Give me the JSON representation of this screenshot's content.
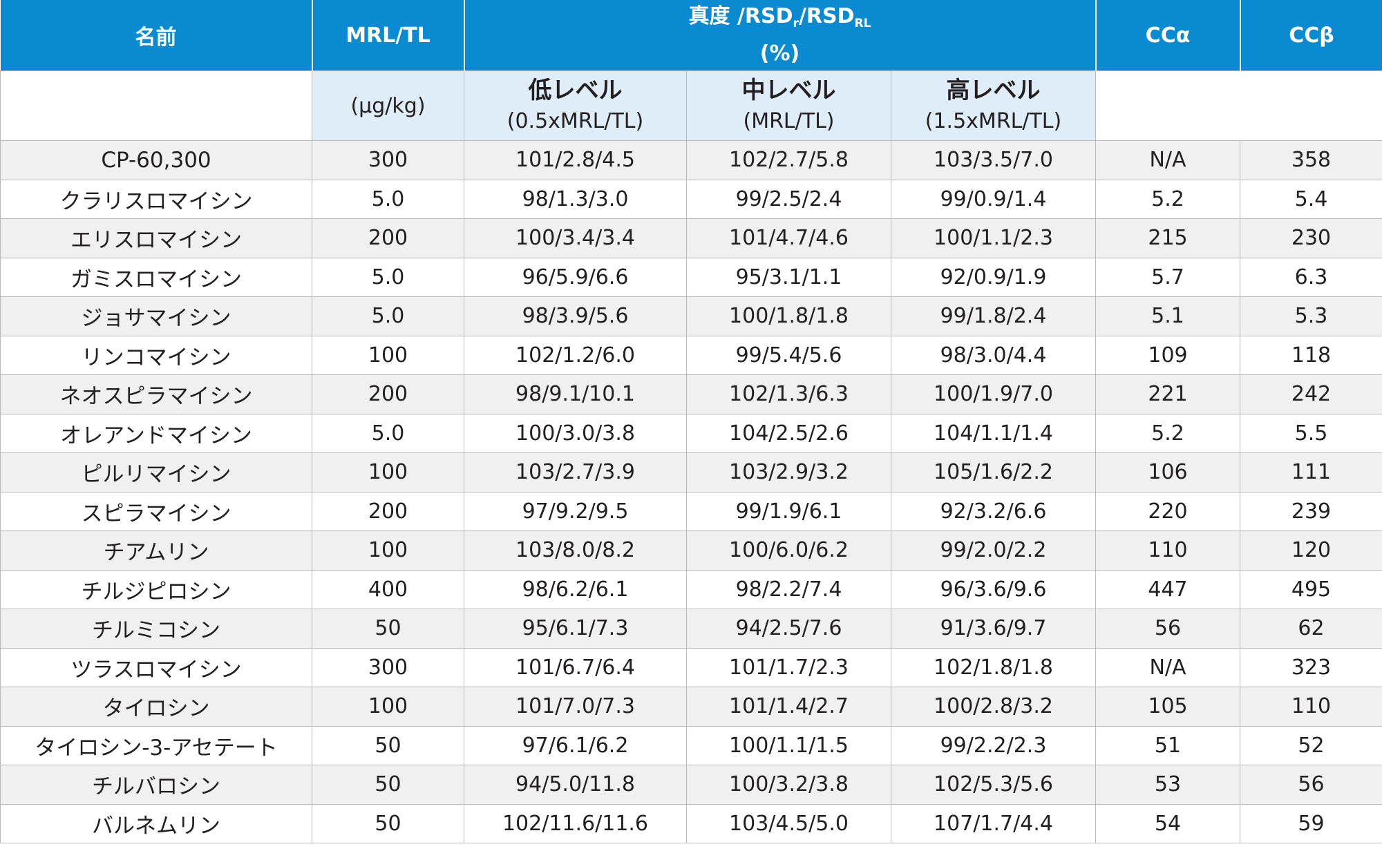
{
  "header": {
    "name": "名前",
    "mrl": "MRL/TL",
    "trueness_prefix": "真度 /RSD",
    "trueness_sub_r": "r",
    "trueness_mid": "/RSD",
    "trueness_sub_rl": "RL",
    "trueness_unit": "(%)",
    "cc_alpha": "CCα",
    "cc_beta": "CCβ"
  },
  "subheader": {
    "unit": "(μg/kg)",
    "low_name": "低レベル",
    "low_def": "(0.5xMRL/TL)",
    "mid_name": "中レベル",
    "mid_def": "(MRL/TL)",
    "high_name": "高レベル",
    "high_def": "(1.5xMRL/TL)"
  },
  "rows": [
    {
      "name": "CP-60,300",
      "mrl": "300",
      "low": "101/2.8/4.5",
      "mid": "102/2.7/5.8",
      "high": "103/3.5/7.0",
      "cca": "N/A",
      "ccb": "358"
    },
    {
      "name": "クラリスロマイシン",
      "mrl": "5.0",
      "low": "98/1.3/3.0",
      "mid": "99/2.5/2.4",
      "high": "99/0.9/1.4",
      "cca": "5.2",
      "ccb": "5.4"
    },
    {
      "name": "エリスロマイシン",
      "mrl": "200",
      "low": "100/3.4/3.4",
      "mid": "101/4.7/4.6",
      "high": "100/1.1/2.3",
      "cca": "215",
      "ccb": "230"
    },
    {
      "name": "ガミスロマイシン",
      "mrl": "5.0",
      "low": "96/5.9/6.6",
      "mid": "95/3.1/1.1",
      "high": "92/0.9/1.9",
      "cca": "5.7",
      "ccb": "6.3"
    },
    {
      "name": "ジョサマイシン",
      "mrl": "5.0",
      "low": "98/3.9/5.6",
      "mid": "100/1.8/1.8",
      "high": "99/1.8/2.4",
      "cca": "5.1",
      "ccb": "5.3"
    },
    {
      "name": "リンコマイシン",
      "mrl": "100",
      "low": "102/1.2/6.0",
      "mid": "99/5.4/5.6",
      "high": "98/3.0/4.4",
      "cca": "109",
      "ccb": "118"
    },
    {
      "name": "ネオスピラマイシン",
      "mrl": "200",
      "low": "98/9.1/10.1",
      "mid": "102/1.3/6.3",
      "high": "100/1.9/7.0",
      "cca": "221",
      "ccb": "242"
    },
    {
      "name": "オレアンドマイシン",
      "mrl": "5.0",
      "low": "100/3.0/3.8",
      "mid": "104/2.5/2.6",
      "high": "104/1.1/1.4",
      "cca": "5.2",
      "ccb": "5.5"
    },
    {
      "name": "ピルリマイシン",
      "mrl": "100",
      "low": "103/2.7/3.9",
      "mid": "103/2.9/3.2",
      "high": "105/1.6/2.2",
      "cca": "106",
      "ccb": "111"
    },
    {
      "name": "スピラマイシン",
      "mrl": "200",
      "low": "97/9.2/9.5",
      "mid": "99/1.9/6.1",
      "high": "92/3.2/6.6",
      "cca": "220",
      "ccb": "239"
    },
    {
      "name": "チアムリン",
      "mrl": "100",
      "low": "103/8.0/8.2",
      "mid": "100/6.0/6.2",
      "high": "99/2.0/2.2",
      "cca": "110",
      "ccb": "120"
    },
    {
      "name": "チルジピロシン",
      "mrl": "400",
      "low": "98/6.2/6.1",
      "mid": "98/2.2/7.4",
      "high": "96/3.6/9.6",
      "cca": "447",
      "ccb": "495"
    },
    {
      "name": "チルミコシン",
      "mrl": "50",
      "low": "95/6.1/7.3",
      "mid": "94/2.5/7.6",
      "high": "91/3.6/9.7",
      "cca": "56",
      "ccb": "62"
    },
    {
      "name": "ツラスロマイシン",
      "mrl": "300",
      "low": "101/6.7/6.4",
      "mid": "101/1.7/2.3",
      "high": "102/1.8/1.8",
      "cca": "N/A",
      "ccb": "323"
    },
    {
      "name": "タイロシン",
      "mrl": "100",
      "low": "101/7.0/7.3",
      "mid": "101/1.4/2.7",
      "high": "100/2.8/3.2",
      "cca": "105",
      "ccb": "110"
    },
    {
      "name": "タイロシン-3-アセテート",
      "mrl": "50",
      "low": "97/6.1/6.2",
      "mid": "100/1.1/1.5",
      "high": "99/2.2/2.3",
      "cca": "51",
      "ccb": "52"
    },
    {
      "name": "チルバロシン",
      "mrl": "50",
      "low": "94/5.0/11.8",
      "mid": "100/3.2/3.8",
      "high": "102/5.3/5.6",
      "cca": "53",
      "ccb": "56"
    },
    {
      "name": "バルネムリン",
      "mrl": "50",
      "low": "102/11.6/11.6",
      "mid": "103/4.5/5.0",
      "high": "107/1.7/4.4",
      "cca": "54",
      "ccb": "59"
    }
  ]
}
